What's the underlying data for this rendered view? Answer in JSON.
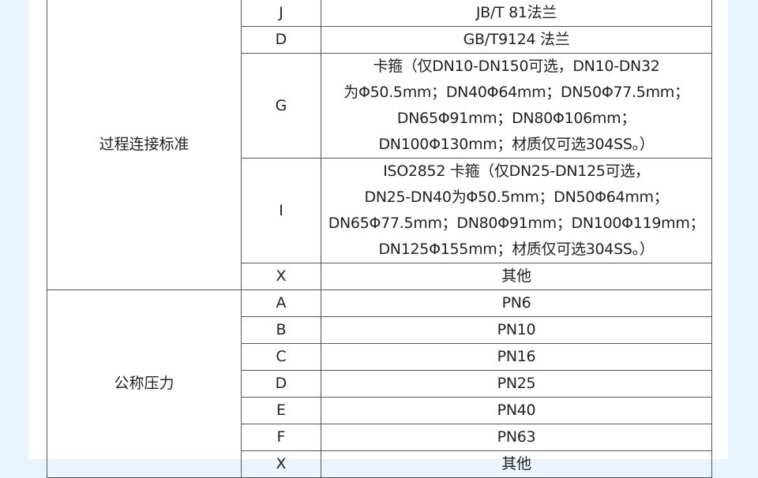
{
  "groups": [
    {
      "label": "过程连接标准",
      "rows": [
        {
          "code": "J",
          "desc": [
            "JB/T 81法兰"
          ]
        },
        {
          "code": "D",
          "desc": [
            "GB/T9124 法兰"
          ]
        },
        {
          "code": "G",
          "desc": [
            "卡箍（仅DN10-DN150可选，DN10-DN32",
            "为Φ50.5mm；DN40Φ64mm；DN50Φ77.5mm；",
            "DN65Φ91mm；DN80Φ106mm；",
            "DN100Φ130mm；材质仅可选304SS。）"
          ]
        },
        {
          "code": "I",
          "desc": [
            "ISO2852 卡箍（仅DN25-DN125可选，",
            "DN25-DN40为Φ50.5mm；DN50Φ64mm；",
            "DN65Φ77.5mm；DN80Φ91mm；DN100Φ119mm；",
            "DN125Φ155mm；材质仅可选304SS。）"
          ]
        },
        {
          "code": "X",
          "desc": [
            "其他"
          ]
        }
      ]
    },
    {
      "label": "公称压力",
      "rows": [
        {
          "code": "A",
          "desc": [
            "PN6"
          ]
        },
        {
          "code": "B",
          "desc": [
            "PN10"
          ]
        },
        {
          "code": "C",
          "desc": [
            "PN16"
          ]
        },
        {
          "code": "D",
          "desc": [
            "PN25"
          ]
        },
        {
          "code": "E",
          "desc": [
            "PN40"
          ]
        },
        {
          "code": "F",
          "desc": [
            "PN63"
          ]
        },
        {
          "code": "X",
          "desc": [
            "其他"
          ]
        }
      ]
    }
  ],
  "colors": {
    "background": "#e8f4fe",
    "border": "#555555"
  }
}
